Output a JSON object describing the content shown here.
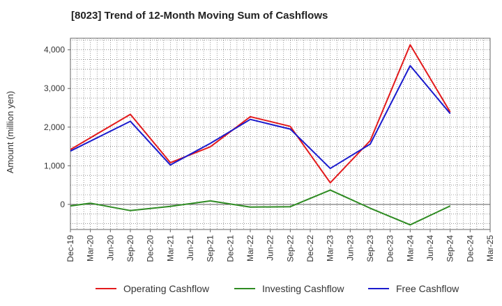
{
  "chart_data": {
    "type": "line",
    "title": "[8023]  Trend of 12-Month Moving Sum of Cashflows",
    "ylabel": "Amount (million yen)",
    "xlabel": "",
    "ylim": [
      -650,
      4300
    ],
    "yticks": [
      0,
      1000,
      2000,
      3000,
      4000
    ],
    "ytick_labels": [
      "0",
      "1,000",
      "2,000",
      "3,000",
      "4,000"
    ],
    "categories": [
      "Dec-19",
      "Mar-20",
      "Jun-20",
      "Sep-20",
      "Dec-20",
      "Mar-21",
      "Jun-21",
      "Sep-21",
      "Dec-21",
      "Mar-22",
      "Jun-22",
      "Sep-22",
      "Dec-22",
      "Mar-23",
      "Jun-23",
      "Sep-23",
      "Dec-23",
      "Mar-24",
      "Jun-24",
      "Sep-24",
      "Dec-24",
      "Mar-25"
    ],
    "grid": true,
    "legend_position": "bottom",
    "series": [
      {
        "name": "Operating Cashflow",
        "color": "#e31a1c",
        "values": [
          1420,
          null,
          null,
          2330,
          null,
          1080,
          null,
          1490,
          null,
          2270,
          null,
          2020,
          null,
          560,
          null,
          1650,
          null,
          4130,
          null,
          2390,
          null,
          null
        ]
      },
      {
        "name": "Investing Cashflow",
        "color": "#2e8b22",
        "values": [
          -40,
          30,
          null,
          -160,
          null,
          -50,
          null,
          90,
          null,
          -70,
          null,
          -60,
          null,
          370,
          null,
          -100,
          null,
          -530,
          null,
          -40,
          null,
          null
        ]
      },
      {
        "name": "Free Cashflow",
        "color": "#1a1acd",
        "values": [
          1380,
          null,
          null,
          2150,
          null,
          1020,
          null,
          1580,
          null,
          2200,
          null,
          1950,
          null,
          930,
          null,
          1560,
          null,
          3590,
          null,
          2350,
          null,
          null
        ]
      }
    ]
  }
}
